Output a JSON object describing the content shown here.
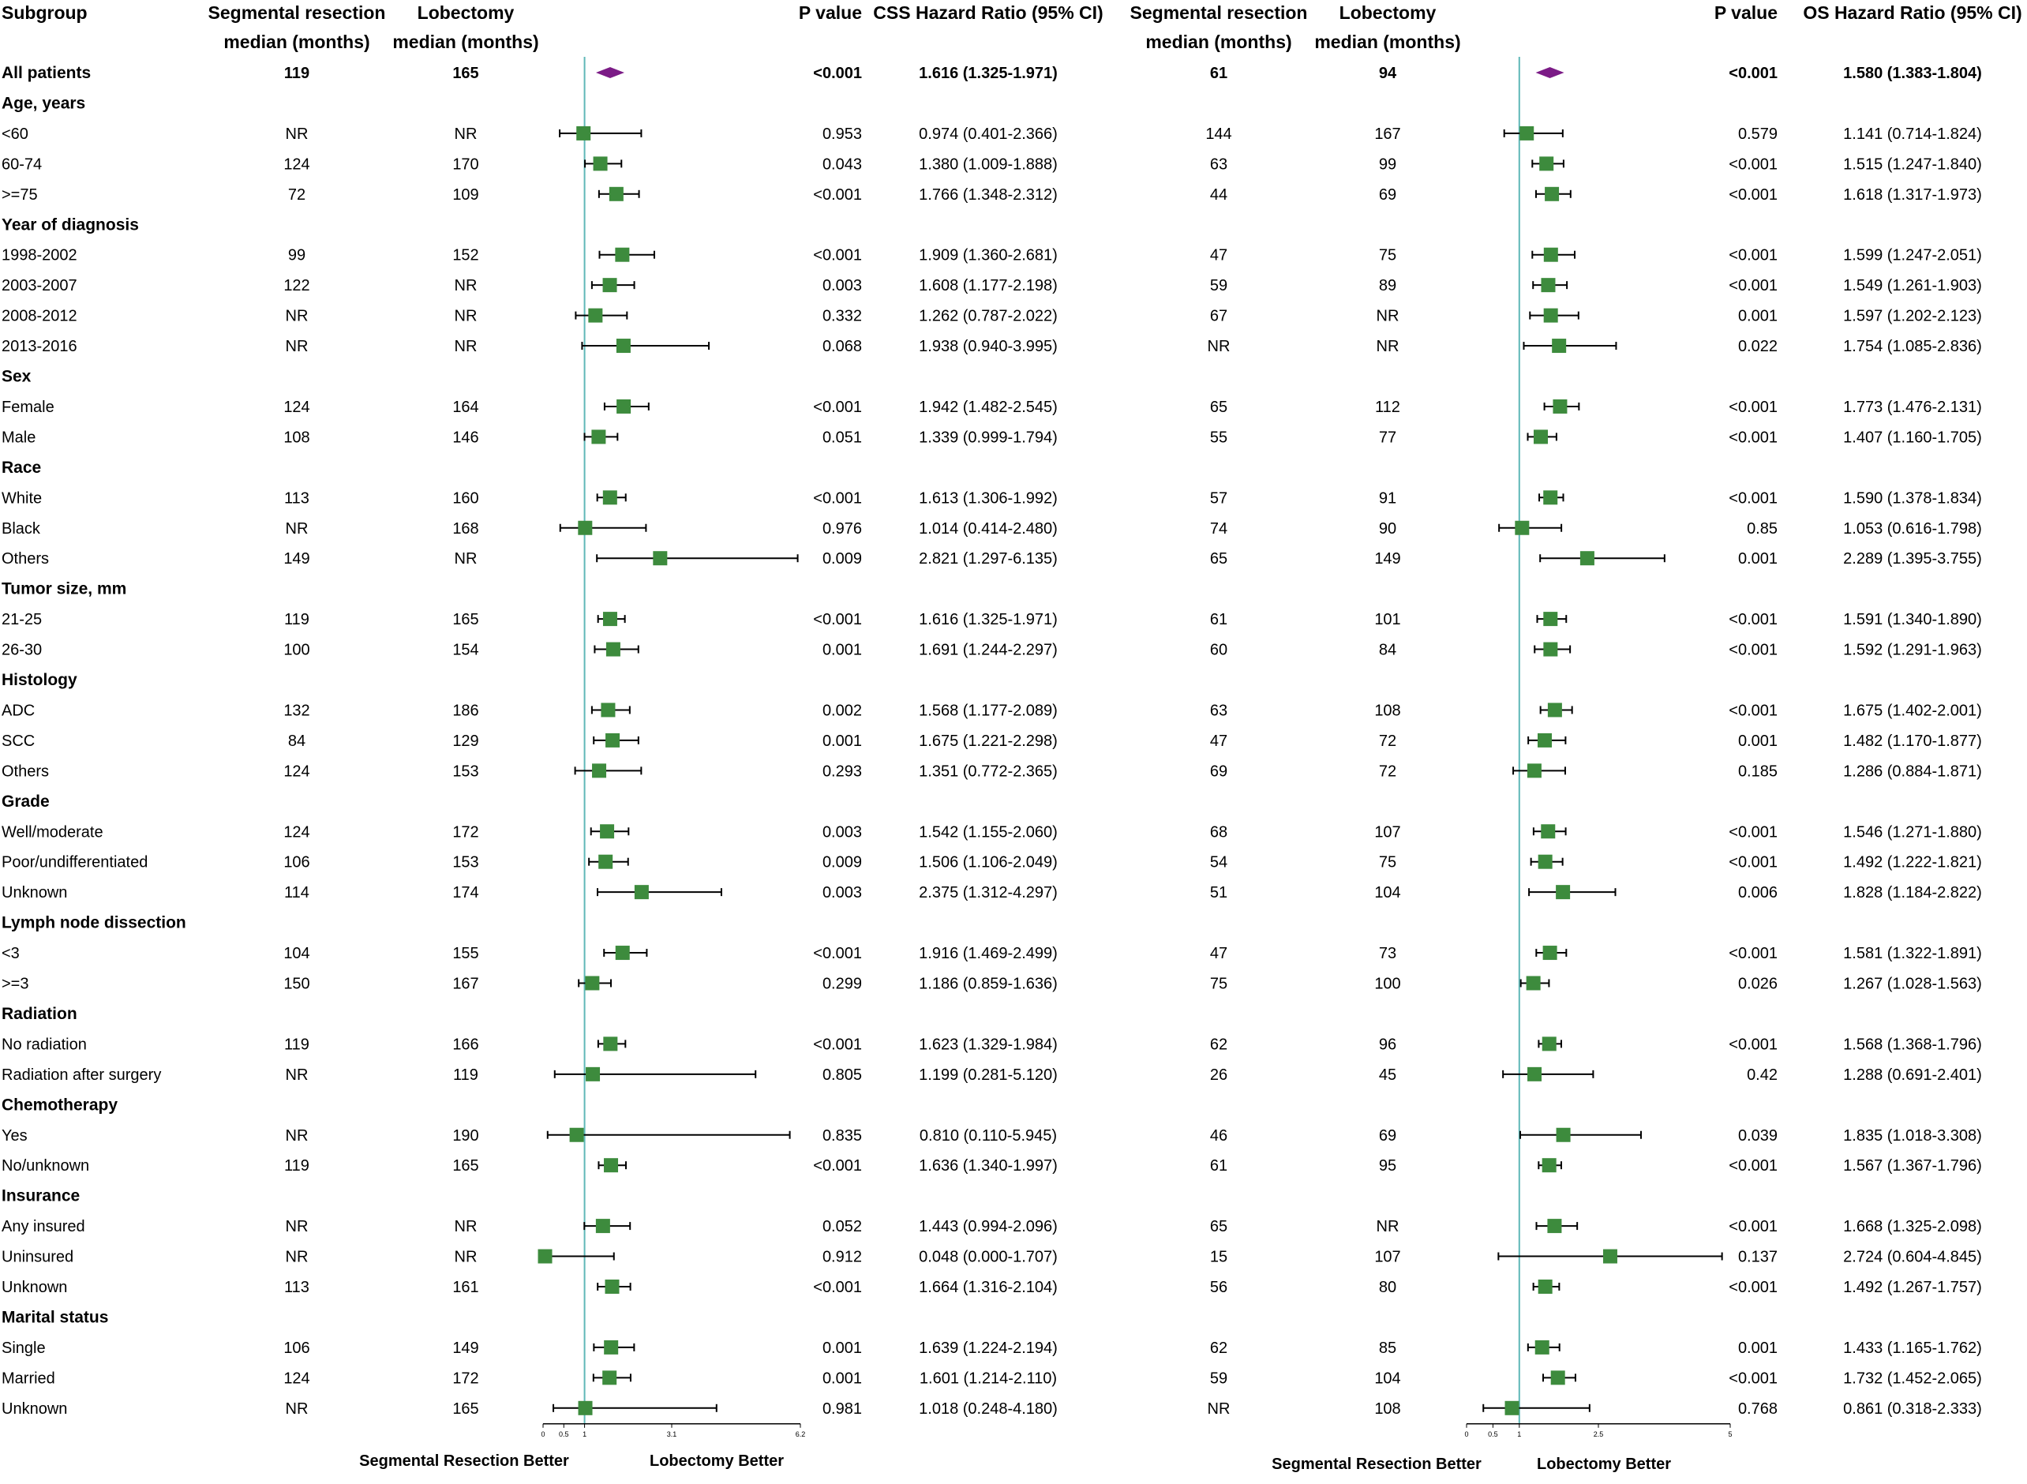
{
  "chart_data": {
    "type": "forest",
    "left_panel": {
      "col_headers": {
        "subgroup": "Subgroup",
        "seg_l1": "Segmental resection",
        "seg_l2": "median (months)",
        "lob_l1": "Lobectomy",
        "lob_l2": "median (months)",
        "p": "P value",
        "hr": "CSS Hazard Ratio (95% CI)"
      },
      "axis": {
        "ticks": [
          "0",
          "0.5",
          "1",
          "3.1",
          "6.2"
        ],
        "tick_values": [
          0,
          0.5,
          1,
          3.1,
          6.2
        ],
        "ref": 1,
        "xmax": 6.2
      },
      "footer_left": "Segmental Resection Better",
      "footer_right": "Lobectomy Better"
    },
    "right_panel": {
      "col_headers": {
        "seg_l1": "Segmental resection",
        "seg_l2": "median (months)",
        "lob_l1": "Lobectomy",
        "lob_l2": "median (months)",
        "p": "P value",
        "hr": "OS Hazard Ratio (95% CI)"
      },
      "axis": {
        "ticks": [
          "0",
          "0.5",
          "1",
          "2.5",
          "5"
        ],
        "tick_values": [
          0,
          0.5,
          1,
          2.5,
          5
        ],
        "ref": 1,
        "xmax": 5
      },
      "footer_left": "Segmental Resection Better",
      "footer_right": "Lobectomy Better"
    },
    "rows": [
      {
        "type": "overall",
        "label": "All patients",
        "css": {
          "seg": "119",
          "lob": "165",
          "p": "<0.001",
          "hr_text": "1.616 (1.325-1.971)",
          "hr": 1.616,
          "lo": 1.325,
          "hi": 1.971
        },
        "os": {
          "seg": "61",
          "lob": "94",
          "p": "<0.001",
          "hr_text": "1.580 (1.383-1.804)",
          "hr": 1.58,
          "lo": 1.383,
          "hi": 1.804
        }
      },
      {
        "type": "group",
        "label": "Age, years"
      },
      {
        "type": "item",
        "label": "<60",
        "css": {
          "seg": "NR",
          "lob": "NR",
          "p": "0.953",
          "hr_text": "0.974 (0.401-2.366)",
          "hr": 0.974,
          "lo": 0.401,
          "hi": 2.366
        },
        "os": {
          "seg": "144",
          "lob": "167",
          "p": "0.579",
          "hr_text": "1.141 (0.714-1.824)",
          "hr": 1.141,
          "lo": 0.714,
          "hi": 1.824
        }
      },
      {
        "type": "item",
        "label": "60-74",
        "css": {
          "seg": "124",
          "lob": "170",
          "p": "0.043",
          "hr_text": "1.380 (1.009-1.888)",
          "hr": 1.38,
          "lo": 1.009,
          "hi": 1.888
        },
        "os": {
          "seg": "63",
          "lob": "99",
          "p": "<0.001",
          "hr_text": "1.515 (1.247-1.840)",
          "hr": 1.515,
          "lo": 1.247,
          "hi": 1.84
        }
      },
      {
        "type": "item",
        "label": ">=75",
        "css": {
          "seg": "72",
          "lob": "109",
          "p": "<0.001",
          "hr_text": "1.766 (1.348-2.312)",
          "hr": 1.766,
          "lo": 1.348,
          "hi": 2.312
        },
        "os": {
          "seg": "44",
          "lob": "69",
          "p": "<0.001",
          "hr_text": "1.618 (1.317-1.973)",
          "hr": 1.618,
          "lo": 1.317,
          "hi": 1.973
        }
      },
      {
        "type": "group",
        "label": "Year of diagnosis"
      },
      {
        "type": "item",
        "label": "1998-2002",
        "css": {
          "seg": "99",
          "lob": "152",
          "p": "<0.001",
          "hr_text": "1.909 (1.360-2.681)",
          "hr": 1.909,
          "lo": 1.36,
          "hi": 2.681
        },
        "os": {
          "seg": "47",
          "lob": "75",
          "p": "<0.001",
          "hr_text": "1.599 (1.247-2.051)",
          "hr": 1.599,
          "lo": 1.247,
          "hi": 2.051
        }
      },
      {
        "type": "item",
        "label": "2003-2007",
        "css": {
          "seg": "122",
          "lob": "NR",
          "p": "0.003",
          "hr_text": "1.608 (1.177-2.198)",
          "hr": 1.608,
          "lo": 1.177,
          "hi": 2.198
        },
        "os": {
          "seg": "59",
          "lob": "89",
          "p": "<0.001",
          "hr_text": "1.549 (1.261-1.903)",
          "hr": 1.549,
          "lo": 1.261,
          "hi": 1.903
        }
      },
      {
        "type": "item",
        "label": "2008-2012",
        "css": {
          "seg": "NR",
          "lob": "NR",
          "p": "0.332",
          "hr_text": "1.262 (0.787-2.022)",
          "hr": 1.262,
          "lo": 0.787,
          "hi": 2.022
        },
        "os": {
          "seg": "67",
          "lob": "NR",
          "p": "0.001",
          "hr_text": "1.597 (1.202-2.123)",
          "hr": 1.597,
          "lo": 1.202,
          "hi": 2.123
        }
      },
      {
        "type": "item",
        "label": "2013-2016",
        "css": {
          "seg": "NR",
          "lob": "NR",
          "p": "0.068",
          "hr_text": "1.938 (0.940-3.995)",
          "hr": 1.938,
          "lo": 0.94,
          "hi": 3.995
        },
        "os": {
          "seg": "NR",
          "lob": "NR",
          "p": "0.022",
          "hr_text": "1.754 (1.085-2.836)",
          "hr": 1.754,
          "lo": 1.085,
          "hi": 2.836
        }
      },
      {
        "type": "group",
        "label": "Sex"
      },
      {
        "type": "item",
        "label": "Female",
        "css": {
          "seg": "124",
          "lob": "164",
          "p": "<0.001",
          "hr_text": "1.942 (1.482-2.545)",
          "hr": 1.942,
          "lo": 1.482,
          "hi": 2.545
        },
        "os": {
          "seg": "65",
          "lob": "112",
          "p": "<0.001",
          "hr_text": "1.773 (1.476-2.131)",
          "hr": 1.773,
          "lo": 1.476,
          "hi": 2.131
        }
      },
      {
        "type": "item",
        "label": "Male",
        "css": {
          "seg": "108",
          "lob": "146",
          "p": "0.051",
          "hr_text": "1.339 (0.999-1.794)",
          "hr": 1.339,
          "lo": 0.999,
          "hi": 1.794
        },
        "os": {
          "seg": "55",
          "lob": "77",
          "p": "<0.001",
          "hr_text": "1.407 (1.160-1.705)",
          "hr": 1.407,
          "lo": 1.16,
          "hi": 1.705
        }
      },
      {
        "type": "group",
        "label": "Race"
      },
      {
        "type": "item",
        "label": "White",
        "css": {
          "seg": "113",
          "lob": "160",
          "p": "<0.001",
          "hr_text": "1.613 (1.306-1.992)",
          "hr": 1.613,
          "lo": 1.306,
          "hi": 1.992
        },
        "os": {
          "seg": "57",
          "lob": "91",
          "p": "<0.001",
          "hr_text": "1.590 (1.378-1.834)",
          "hr": 1.59,
          "lo": 1.378,
          "hi": 1.834
        }
      },
      {
        "type": "item",
        "label": "Black",
        "css": {
          "seg": "NR",
          "lob": "168",
          "p": "0.976",
          "hr_text": "1.014 (0.414-2.480)",
          "hr": 1.014,
          "lo": 0.414,
          "hi": 2.48
        },
        "os": {
          "seg": "74",
          "lob": "90",
          "p": "0.85",
          "hr_text": "1.053 (0.616-1.798)",
          "hr": 1.053,
          "lo": 0.616,
          "hi": 1.798
        }
      },
      {
        "type": "item",
        "label": "Others",
        "css": {
          "seg": "149",
          "lob": "NR",
          "p": "0.009",
          "hr_text": "2.821 (1.297-6.135)",
          "hr": 2.821,
          "lo": 1.297,
          "hi": 6.135
        },
        "os": {
          "seg": "65",
          "lob": "149",
          "p": "0.001",
          "hr_text": "2.289 (1.395-3.755)",
          "hr": 2.289,
          "lo": 1.395,
          "hi": 3.755
        }
      },
      {
        "type": "group",
        "label": "Tumor size, mm"
      },
      {
        "type": "item",
        "label": "21-25",
        "css": {
          "seg": "119",
          "lob": "165",
          "p": "<0.001",
          "hr_text": "1.616 (1.325-1.971)",
          "hr": 1.616,
          "lo": 1.325,
          "hi": 1.971
        },
        "os": {
          "seg": "61",
          "lob": "101",
          "p": "<0.001",
          "hr_text": "1.591 (1.340-1.890)",
          "hr": 1.591,
          "lo": 1.34,
          "hi": 1.89
        }
      },
      {
        "type": "item",
        "label": "26-30",
        "css": {
          "seg": "100",
          "lob": "154",
          "p": "0.001",
          "hr_text": "1.691 (1.244-2.297)",
          "hr": 1.691,
          "lo": 1.244,
          "hi": 2.297
        },
        "os": {
          "seg": "60",
          "lob": "84",
          "p": "<0.001",
          "hr_text": "1.592 (1.291-1.963)",
          "hr": 1.592,
          "lo": 1.291,
          "hi": 1.963
        }
      },
      {
        "type": "group",
        "label": "Histology"
      },
      {
        "type": "item",
        "label": "ADC",
        "css": {
          "seg": "132",
          "lob": "186",
          "p": "0.002",
          "hr_text": "1.568 (1.177-2.089)",
          "hr": 1.568,
          "lo": 1.177,
          "hi": 2.089
        },
        "os": {
          "seg": "63",
          "lob": "108",
          "p": "<0.001",
          "hr_text": "1.675 (1.402-2.001)",
          "hr": 1.675,
          "lo": 1.402,
          "hi": 2.001
        }
      },
      {
        "type": "item",
        "label": "SCC",
        "css": {
          "seg": "84",
          "lob": "129",
          "p": "0.001",
          "hr_text": "1.675 (1.221-2.298)",
          "hr": 1.675,
          "lo": 1.221,
          "hi": 2.298
        },
        "os": {
          "seg": "47",
          "lob": "72",
          "p": "0.001",
          "hr_text": "1.482 (1.170-1.877)",
          "hr": 1.482,
          "lo": 1.17,
          "hi": 1.877
        }
      },
      {
        "type": "item",
        "label": "Others",
        "css": {
          "seg": "124",
          "lob": "153",
          "p": "0.293",
          "hr_text": "1.351 (0.772-2.365)",
          "hr": 1.351,
          "lo": 0.772,
          "hi": 2.365
        },
        "os": {
          "seg": "69",
          "lob": "72",
          "p": "0.185",
          "hr_text": "1.286 (0.884-1.871)",
          "hr": 1.286,
          "lo": 0.884,
          "hi": 1.871
        }
      },
      {
        "type": "group",
        "label": "Grade"
      },
      {
        "type": "item",
        "label": "Well/moderate",
        "css": {
          "seg": "124",
          "lob": "172",
          "p": "0.003",
          "hr_text": "1.542 (1.155-2.060)",
          "hr": 1.542,
          "lo": 1.155,
          "hi": 2.06
        },
        "os": {
          "seg": "68",
          "lob": "107",
          "p": "<0.001",
          "hr_text": "1.546 (1.271-1.880)",
          "hr": 1.546,
          "lo": 1.271,
          "hi": 1.88
        }
      },
      {
        "type": "item",
        "label": "Poor/undifferentiated",
        "css": {
          "seg": "106",
          "lob": "153",
          "p": "0.009",
          "hr_text": "1.506 (1.106-2.049)",
          "hr": 1.506,
          "lo": 1.106,
          "hi": 2.049
        },
        "os": {
          "seg": "54",
          "lob": "75",
          "p": "<0.001",
          "hr_text": "1.492 (1.222-1.821)",
          "hr": 1.492,
          "lo": 1.222,
          "hi": 1.821
        }
      },
      {
        "type": "item",
        "label": "Unknown",
        "css": {
          "seg": "114",
          "lob": "174",
          "p": "0.003",
          "hr_text": "2.375 (1.312-4.297)",
          "hr": 2.375,
          "lo": 1.312,
          "hi": 4.297
        },
        "os": {
          "seg": "51",
          "lob": "104",
          "p": "0.006",
          "hr_text": "1.828 (1.184-2.822)",
          "hr": 1.828,
          "lo": 1.184,
          "hi": 2.822
        }
      },
      {
        "type": "group",
        "label": "Lymph node dissection"
      },
      {
        "type": "item",
        "label": "<3",
        "css": {
          "seg": "104",
          "lob": "155",
          "p": "<0.001",
          "hr_text": "1.916 (1.469-2.499)",
          "hr": 1.916,
          "lo": 1.469,
          "hi": 2.499
        },
        "os": {
          "seg": "47",
          "lob": "73",
          "p": "<0.001",
          "hr_text": "1.581 (1.322-1.891)",
          "hr": 1.581,
          "lo": 1.322,
          "hi": 1.891
        }
      },
      {
        "type": "item",
        "label": ">=3",
        "css": {
          "seg": "150",
          "lob": "167",
          "p": "0.299",
          "hr_text": "1.186 (0.859-1.636)",
          "hr": 1.186,
          "lo": 0.859,
          "hi": 1.636
        },
        "os": {
          "seg": "75",
          "lob": "100",
          "p": "0.026",
          "hr_text": "1.267 (1.028-1.563)",
          "hr": 1.267,
          "lo": 1.028,
          "hi": 1.563
        }
      },
      {
        "type": "group",
        "label": "Radiation"
      },
      {
        "type": "item",
        "label": "No radiation",
        "css": {
          "seg": "119",
          "lob": "166",
          "p": "<0.001",
          "hr_text": "1.623 (1.329-1.984)",
          "hr": 1.623,
          "lo": 1.329,
          "hi": 1.984
        },
        "os": {
          "seg": "62",
          "lob": "96",
          "p": "<0.001",
          "hr_text": "1.568 (1.368-1.796)",
          "hr": 1.568,
          "lo": 1.368,
          "hi": 1.796
        }
      },
      {
        "type": "item",
        "label": "Radiation after surgery",
        "css": {
          "seg": "NR",
          "lob": "119",
          "p": "0.805",
          "hr_text": "1.199 (0.281-5.120)",
          "hr": 1.199,
          "lo": 0.281,
          "hi": 5.12
        },
        "os": {
          "seg": "26",
          "lob": "45",
          "p": "0.42",
          "hr_text": "1.288 (0.691-2.401)",
          "hr": 1.288,
          "lo": 0.691,
          "hi": 2.401
        }
      },
      {
        "type": "group",
        "label": "Chemotherapy"
      },
      {
        "type": "item",
        "label": "Yes",
        "css": {
          "seg": "NR",
          "lob": "190",
          "p": "0.835",
          "hr_text": "0.810 (0.110-5.945)",
          "hr": 0.81,
          "lo": 0.11,
          "hi": 5.945
        },
        "os": {
          "seg": "46",
          "lob": "69",
          "p": "0.039",
          "hr_text": "1.835 (1.018-3.308)",
          "hr": 1.835,
          "lo": 1.018,
          "hi": 3.308
        }
      },
      {
        "type": "item",
        "label": "No/unknown",
        "css": {
          "seg": "119",
          "lob": "165",
          "p": "<0.001",
          "hr_text": "1.636 (1.340-1.997)",
          "hr": 1.636,
          "lo": 1.34,
          "hi": 1.997
        },
        "os": {
          "seg": "61",
          "lob": "95",
          "p": "<0.001",
          "hr_text": "1.567 (1.367-1.796)",
          "hr": 1.567,
          "lo": 1.367,
          "hi": 1.796
        }
      },
      {
        "type": "group",
        "label": "Insurance"
      },
      {
        "type": "item",
        "label": "Any insured",
        "css": {
          "seg": "NR",
          "lob": "NR",
          "p": "0.052",
          "hr_text": "1.443 (0.994-2.096)",
          "hr": 1.443,
          "lo": 0.994,
          "hi": 2.096
        },
        "os": {
          "seg": "65",
          "lob": "NR",
          "p": "<0.001",
          "hr_text": "1.668 (1.325-2.098)",
          "hr": 1.668,
          "lo": 1.325,
          "hi": 2.098
        }
      },
      {
        "type": "item",
        "label": "Uninsured",
        "css": {
          "seg": "NR",
          "lob": "NR",
          "p": "0.912",
          "hr_text": "0.048 (0.000-1.707)",
          "hr": 0.048,
          "lo": 0.0,
          "hi": 1.707
        },
        "os": {
          "seg": "15",
          "lob": "107",
          "p": "0.137",
          "hr_text": "2.724 (0.604-4.845)",
          "hr": 2.724,
          "lo": 0.604,
          "hi": 4.845
        }
      },
      {
        "type": "item",
        "label": "Unknown",
        "css": {
          "seg": "113",
          "lob": "161",
          "p": "<0.001",
          "hr_text": "1.664 (1.316-2.104)",
          "hr": 1.664,
          "lo": 1.316,
          "hi": 2.104
        },
        "os": {
          "seg": "56",
          "lob": "80",
          "p": "<0.001",
          "hr_text": "1.492 (1.267-1.757)",
          "hr": 1.492,
          "lo": 1.267,
          "hi": 1.757
        }
      },
      {
        "type": "group",
        "label": "Marital status"
      },
      {
        "type": "item",
        "label": "Single",
        "css": {
          "seg": "106",
          "lob": "149",
          "p": "0.001",
          "hr_text": "1.639 (1.224-2.194)",
          "hr": 1.639,
          "lo": 1.224,
          "hi": 2.194
        },
        "os": {
          "seg": "62",
          "lob": "85",
          "p": "0.001",
          "hr_text": "1.433 (1.165-1.762)",
          "hr": 1.433,
          "lo": 1.165,
          "hi": 1.762
        }
      },
      {
        "type": "item",
        "label": "Married",
        "css": {
          "seg": "124",
          "lob": "172",
          "p": "0.001",
          "hr_text": "1.601 (1.214-2.110)",
          "hr": 1.601,
          "lo": 1.214,
          "hi": 2.11
        },
        "os": {
          "seg": "59",
          "lob": "104",
          "p": "<0.001",
          "hr_text": "1.732 (1.452-2.065)",
          "hr": 1.732,
          "lo": 1.452,
          "hi": 2.065
        }
      },
      {
        "type": "item",
        "label": "Unknown",
        "css": {
          "seg": "NR",
          "lob": "165",
          "p": "0.981",
          "hr_text": "1.018 (0.248-4.180)",
          "hr": 1.018,
          "lo": 0.248,
          "hi": 4.18
        },
        "os": {
          "seg": "NR",
          "lob": "108",
          "p": "0.768",
          "hr_text": "0.861 (0.318-2.333)",
          "hr": 0.861,
          "lo": 0.318,
          "hi": 2.333
        }
      }
    ],
    "colors": {
      "marker": "#3d8b3d",
      "diamond": "#7b1b86",
      "reference_line": "#5fb8b8",
      "ci_line": "#000000"
    }
  }
}
